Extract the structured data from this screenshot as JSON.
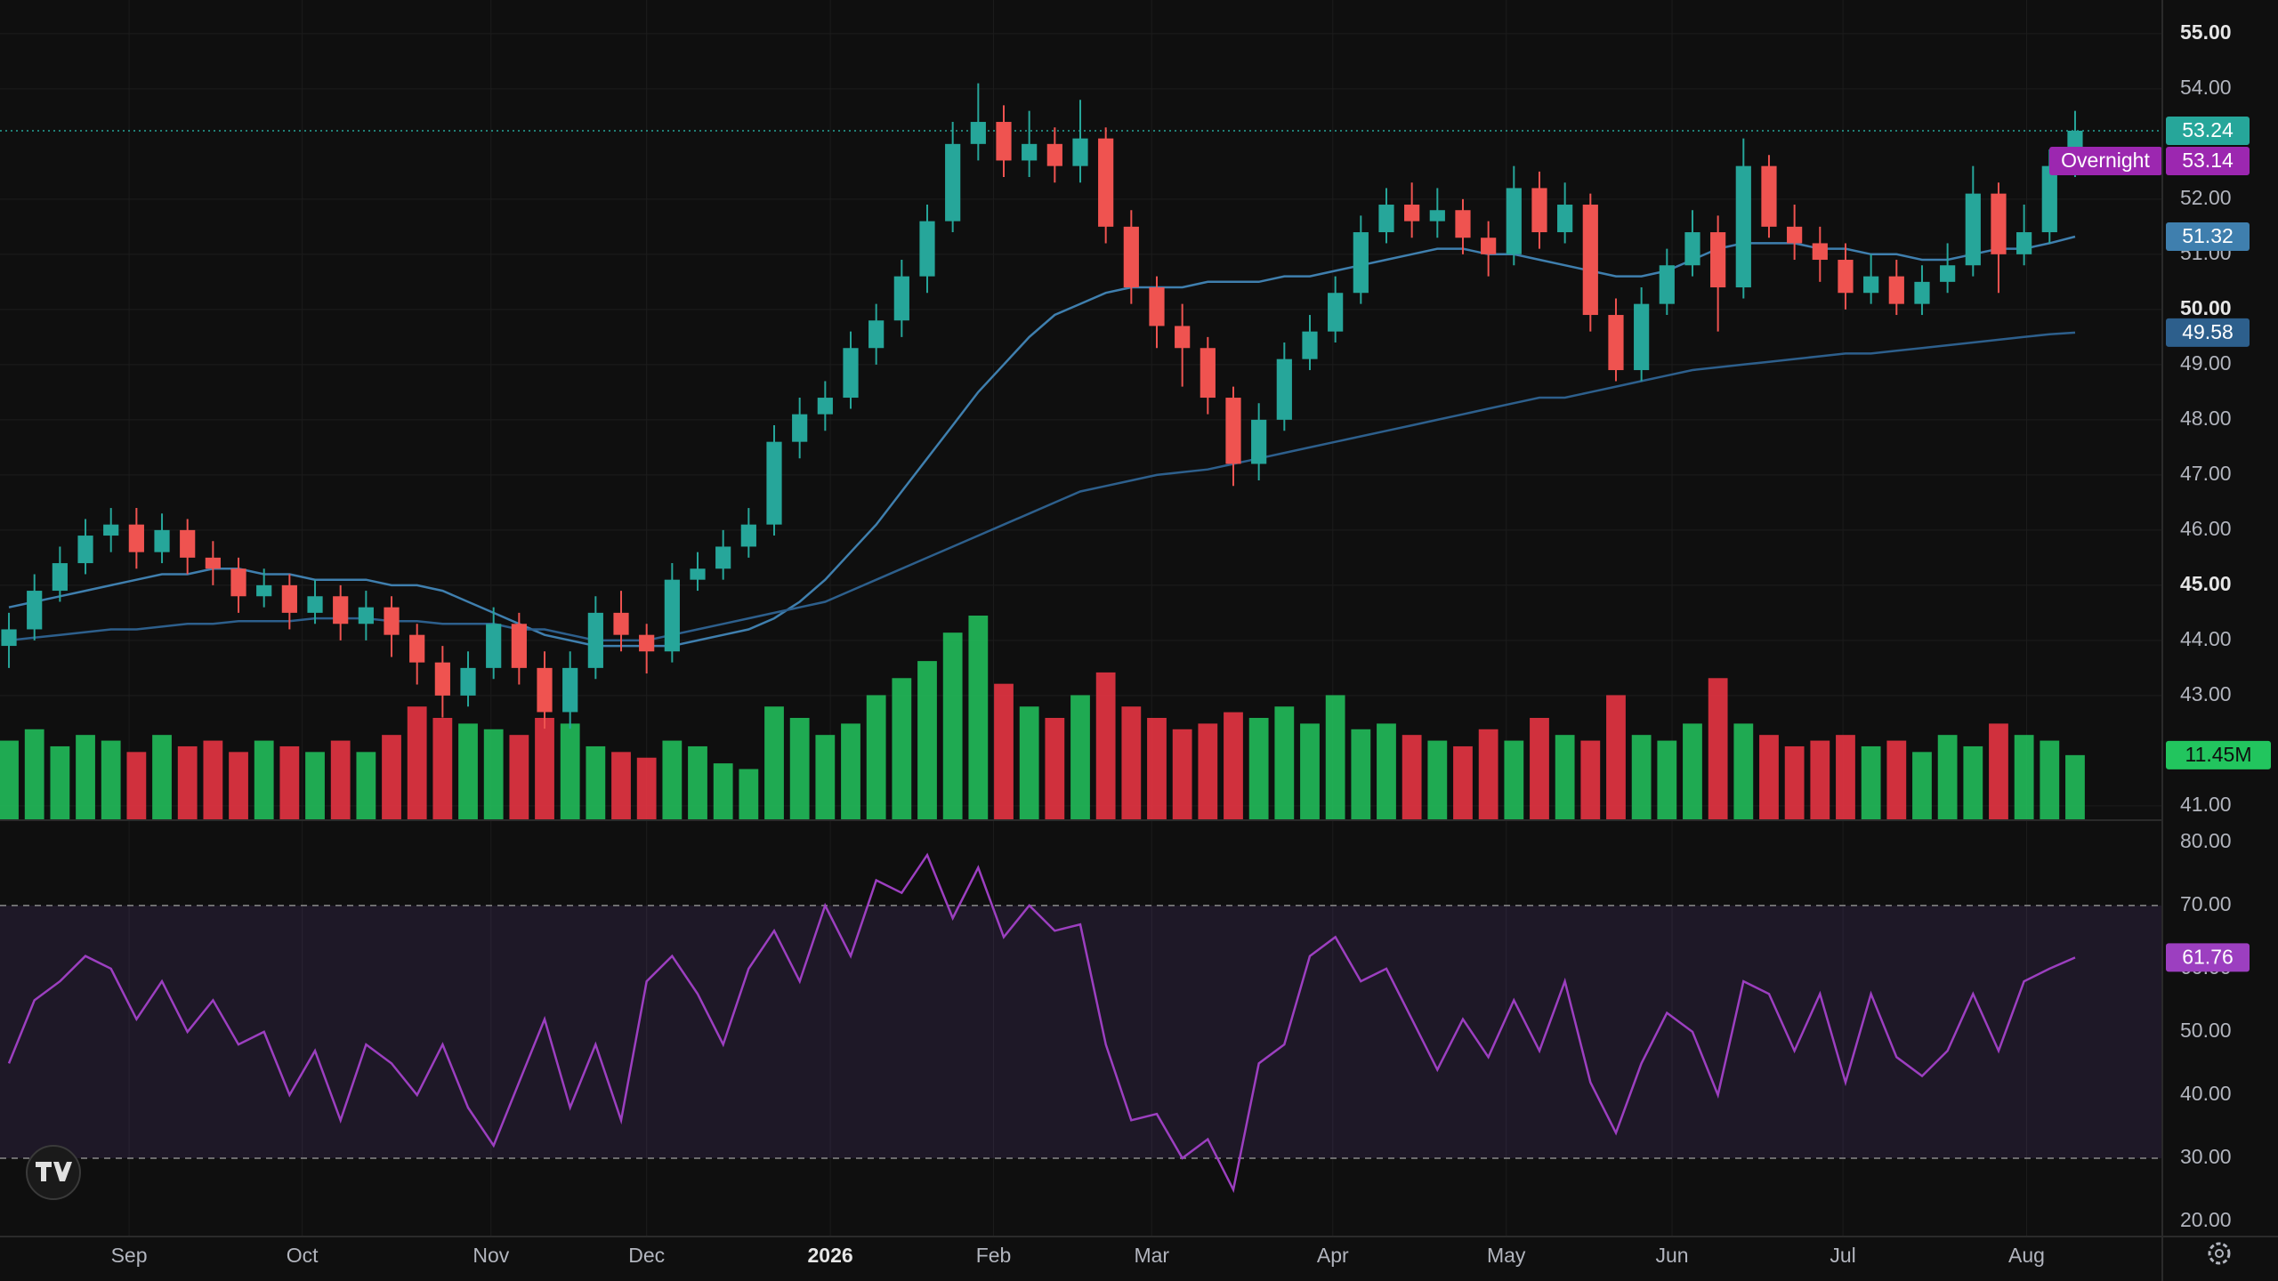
{
  "chart_data": [
    {
      "type": "candlestick",
      "xlim": [
        -0.35,
        84.42
      ],
      "xticks": [
        {
          "value": 4.71,
          "label": "Sep"
        },
        {
          "value": 11.5,
          "label": "Oct"
        },
        {
          "value": 18.9,
          "label": "Nov"
        },
        {
          "value": 25.0,
          "label": "Dec"
        },
        {
          "value": 32.2,
          "label": "2026"
        },
        {
          "value": 38.6,
          "label": "Feb"
        },
        {
          "value": 44.8,
          "label": "Mar"
        },
        {
          "value": 51.9,
          "label": "Apr"
        },
        {
          "value": 58.7,
          "label": "May"
        },
        {
          "value": 65.2,
          "label": "Jun"
        },
        {
          "value": 71.9,
          "label": "Jul"
        },
        {
          "value": 79.1,
          "label": "Aug"
        }
      ],
      "ylim": [
        40.74,
        55.61
      ],
      "yticks": [
        {
          "value": 41,
          "label": "41.00"
        },
        {
          "value": 43,
          "label": "43.00"
        },
        {
          "value": 44,
          "label": "44.00"
        },
        {
          "value": 45,
          "label": "45.00"
        },
        {
          "value": 46,
          "label": "46.00"
        },
        {
          "value": 47,
          "label": "47.00"
        },
        {
          "value": 48,
          "label": "48.00"
        },
        {
          "value": 49,
          "label": "49.00"
        },
        {
          "value": 50,
          "label": "50.00"
        },
        {
          "value": 51,
          "label": "51.00"
        },
        {
          "value": 52,
          "label": "52.00"
        },
        {
          "value": 54,
          "label": "54.00"
        },
        {
          "value": 55,
          "label": "55.00"
        }
      ],
      "grid": true,
      "open": [
        43.9,
        44.2,
        44.9,
        45.4,
        45.9,
        46.1,
        45.6,
        46.0,
        45.5,
        45.3,
        44.8,
        45.0,
        44.5,
        44.8,
        44.3,
        44.6,
        44.1,
        43.6,
        43.0,
        43.5,
        44.3,
        43.5,
        42.7,
        43.5,
        44.5,
        44.1,
        43.8,
        45.1,
        45.3,
        45.7,
        46.1,
        47.6,
        48.1,
        48.4,
        49.3,
        49.8,
        50.6,
        51.6,
        53.0,
        53.4,
        52.7,
        53.0,
        52.6,
        53.1,
        51.5,
        50.4,
        49.7,
        49.3,
        48.4,
        47.2,
        48.0,
        49.1,
        49.6,
        50.3,
        51.4,
        51.9,
        51.6,
        51.8,
        51.3,
        51.0,
        52.2,
        51.4,
        51.9,
        49.9,
        48.9,
        50.1,
        50.8,
        51.4,
        50.4,
        52.6,
        51.5,
        51.2,
        50.9,
        50.3,
        50.6,
        50.1,
        50.5,
        50.8,
        52.1,
        51.0,
        51.4,
        52.6
      ],
      "high": [
        44.5,
        45.2,
        45.7,
        46.2,
        46.4,
        46.4,
        46.3,
        46.2,
        45.8,
        45.5,
        45.3,
        45.2,
        45.1,
        45.0,
        44.9,
        44.8,
        44.3,
        43.9,
        43.8,
        44.6,
        44.5,
        43.8,
        43.8,
        44.8,
        44.9,
        44.3,
        45.4,
        45.6,
        46.0,
        46.4,
        47.9,
        48.4,
        48.7,
        49.6,
        50.1,
        50.9,
        51.9,
        53.4,
        54.1,
        53.7,
        53.6,
        53.3,
        53.8,
        53.3,
        51.8,
        50.6,
        50.1,
        49.5,
        48.6,
        48.3,
        49.4,
        49.9,
        50.6,
        51.7,
        52.2,
        52.3,
        52.2,
        52.0,
        51.6,
        52.6,
        52.5,
        52.3,
        52.1,
        50.2,
        50.4,
        51.1,
        51.8,
        51.7,
        53.1,
        52.8,
        51.9,
        51.5,
        51.2,
        51.0,
        50.9,
        50.8,
        51.2,
        52.6,
        52.3,
        51.9,
        52.9,
        53.6
      ],
      "low": [
        43.5,
        44.0,
        44.7,
        45.2,
        45.6,
        45.3,
        45.4,
        45.2,
        45.0,
        44.5,
        44.6,
        44.2,
        44.3,
        44.0,
        44.0,
        43.7,
        43.2,
        42.6,
        42.8,
        43.3,
        43.2,
        42.4,
        42.4,
        43.3,
        43.8,
        43.4,
        43.6,
        44.9,
        45.1,
        45.5,
        45.9,
        47.3,
        47.8,
        48.2,
        49.0,
        49.5,
        50.3,
        51.4,
        52.7,
        52.4,
        52.4,
        52.3,
        52.3,
        51.2,
        50.1,
        49.3,
        48.6,
        48.1,
        46.8,
        46.9,
        47.8,
        48.9,
        49.4,
        50.1,
        51.2,
        51.3,
        51.3,
        51.0,
        50.6,
        50.8,
        51.1,
        51.2,
        49.6,
        48.7,
        48.7,
        49.9,
        50.6,
        49.6,
        50.2,
        51.3,
        50.9,
        50.5,
        50.0,
        50.1,
        49.9,
        49.9,
        50.3,
        50.6,
        50.3,
        50.8,
        51.2,
        52.4
      ],
      "close": [
        44.2,
        44.9,
        45.4,
        45.9,
        46.1,
        45.6,
        46.0,
        45.5,
        45.3,
        44.8,
        45.0,
        44.5,
        44.8,
        44.3,
        44.6,
        44.1,
        43.6,
        43.0,
        43.5,
        44.3,
        43.5,
        42.7,
        43.5,
        44.5,
        44.1,
        43.8,
        45.1,
        45.3,
        45.7,
        46.1,
        47.6,
        48.1,
        48.4,
        49.3,
        49.8,
        50.6,
        51.6,
        53.0,
        53.4,
        52.7,
        53.0,
        52.6,
        53.1,
        51.5,
        50.4,
        49.7,
        49.3,
        48.4,
        47.2,
        48.0,
        49.1,
        49.6,
        50.3,
        51.4,
        51.9,
        51.6,
        51.8,
        51.3,
        51.0,
        52.2,
        51.4,
        51.9,
        49.9,
        48.9,
        50.1,
        50.8,
        51.4,
        50.4,
        52.6,
        51.5,
        51.2,
        50.9,
        50.3,
        50.6,
        50.1,
        50.5,
        50.8,
        52.1,
        51.0,
        51.4,
        52.6,
        53.24
      ],
      "up_color": "#26a69a",
      "down_color": "#ef5350",
      "volume": [
        14,
        16,
        13,
        15,
        14,
        12,
        15,
        13,
        14,
        12,
        14,
        13,
        12,
        14,
        12,
        15,
        20,
        18,
        17,
        16,
        15,
        18,
        17,
        13,
        12,
        11,
        14,
        13,
        10,
        9,
        20,
        18,
        15,
        17,
        22,
        25,
        28,
        33,
        36,
        24,
        20,
        18,
        22,
        26,
        20,
        18,
        16,
        17,
        19,
        18,
        20,
        17,
        22,
        16,
        17,
        15,
        14,
        13,
        16,
        14,
        18,
        15,
        14,
        22,
        15,
        14,
        17,
        25,
        17,
        15,
        13,
        14,
        15,
        13,
        14,
        12,
        15,
        13,
        17,
        15,
        14,
        11.45
      ],
      "vlim": [
        0,
        36
      ],
      "volume_up_color": "#22c55e",
      "volume_down_color": "#f23645",
      "volume_last_label": "11.45M",
      "series": [
        {
          "color": "#3f7fae",
          "values": [
            44.6,
            44.7,
            44.8,
            44.9,
            45.0,
            45.1,
            45.2,
            45.2,
            45.3,
            45.3,
            45.2,
            45.2,
            45.1,
            45.1,
            45.1,
            45.0,
            45.0,
            44.9,
            44.7,
            44.5,
            44.3,
            44.1,
            44.0,
            43.9,
            43.9,
            43.9,
            43.9,
            44.0,
            44.1,
            44.2,
            44.4,
            44.7,
            45.1,
            45.6,
            46.1,
            46.7,
            47.3,
            47.9,
            48.5,
            49.0,
            49.5,
            49.9,
            50.1,
            50.3,
            50.4,
            50.4,
            50.4,
            50.5,
            50.5,
            50.5,
            50.6,
            50.6,
            50.7,
            50.8,
            50.9,
            51.0,
            51.1,
            51.1,
            51.0,
            51.0,
            50.9,
            50.8,
            50.7,
            50.6,
            50.6,
            50.7,
            50.9,
            51.1,
            51.2,
            51.2,
            51.2,
            51.1,
            51.1,
            51.0,
            51.0,
            50.9,
            50.9,
            51.0,
            51.1,
            51.1,
            51.2,
            51.32
          ]
        },
        {
          "color": "#2d5f8c",
          "values": [
            44.0,
            44.05,
            44.1,
            44.15,
            44.2,
            44.2,
            44.25,
            44.3,
            44.3,
            44.35,
            44.35,
            44.35,
            44.4,
            44.4,
            44.4,
            44.35,
            44.35,
            44.3,
            44.3,
            44.3,
            44.2,
            44.2,
            44.1,
            44.0,
            44.0,
            44.0,
            44.1,
            44.2,
            44.3,
            44.4,
            44.5,
            44.6,
            44.7,
            44.9,
            45.1,
            45.3,
            45.5,
            45.7,
            45.9,
            46.1,
            46.3,
            46.5,
            46.7,
            46.8,
            46.9,
            47.0,
            47.05,
            47.1,
            47.2,
            47.3,
            47.4,
            47.5,
            47.6,
            47.7,
            47.8,
            47.9,
            48.0,
            48.1,
            48.2,
            48.3,
            48.4,
            48.4,
            48.5,
            48.6,
            48.7,
            48.8,
            48.9,
            48.95,
            49.0,
            49.05,
            49.1,
            49.15,
            49.2,
            49.2,
            49.25,
            49.3,
            49.35,
            49.4,
            49.45,
            49.5,
            49.55,
            49.58
          ]
        }
      ],
      "overnight": {
        "label": "Overnight",
        "value": 53.14,
        "color": "#9c27b0"
      }
    },
    {
      "type": "line",
      "xlim": [
        -0.35,
        84.42
      ],
      "ylim": [
        17.6,
        83.5
      ],
      "yticks": [
        {
          "value": 20,
          "label": "20.00"
        },
        {
          "value": 30,
          "label": "30.00"
        },
        {
          "value": 40,
          "label": "40.00"
        },
        {
          "value": 50,
          "label": "50.00"
        },
        {
          "value": 60,
          "label": "60.00"
        },
        {
          "value": 70,
          "label": "70.00"
        },
        {
          "value": 80,
          "label": "80.00"
        }
      ],
      "band": [
        30,
        70
      ],
      "color": "#9c3fc0",
      "values": [
        45,
        55,
        58,
        62,
        60,
        52,
        58,
        50,
        55,
        48,
        50,
        40,
        47,
        36,
        48,
        45,
        40,
        48,
        38,
        32,
        42,
        52,
        38,
        48,
        36,
        58,
        62,
        56,
        48,
        60,
        66,
        58,
        70,
        62,
        74,
        72,
        78,
        68,
        76,
        65,
        70,
        66,
        67,
        48,
        36,
        37,
        30,
        33,
        25,
        45,
        48,
        62,
        65,
        58,
        60,
        52,
        44,
        52,
        46,
        55,
        47,
        58,
        42,
        34,
        45,
        53,
        50,
        40,
        58,
        56,
        47,
        56,
        42,
        56,
        46,
        43,
        47,
        56,
        47,
        58,
        60,
        61.76
      ]
    }
  ]
}
